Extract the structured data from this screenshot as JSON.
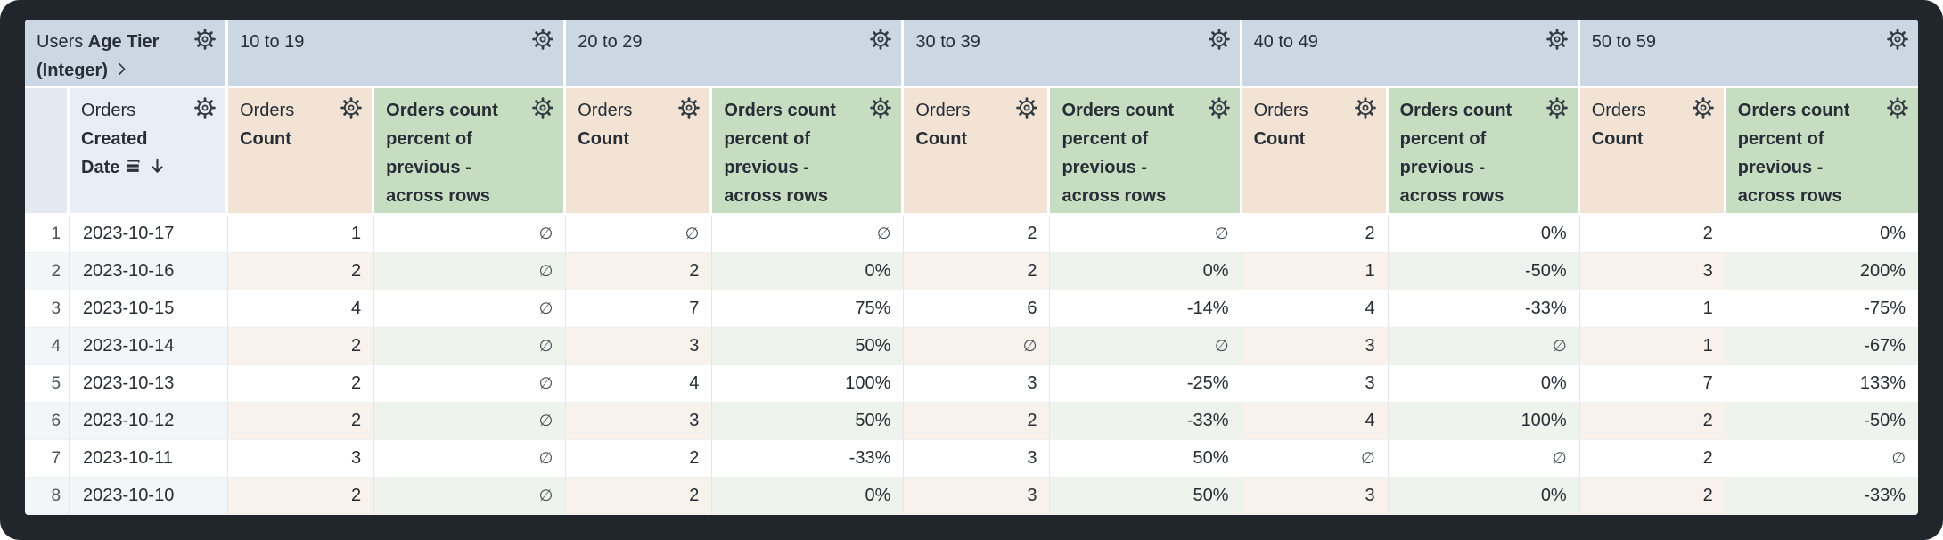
{
  "pivot_header": {
    "view": "Users",
    "field": "Age Tier (Integer)"
  },
  "row_header": {
    "view": "Orders",
    "field_line1": "Created",
    "field_line2": "Date"
  },
  "pivots": [
    "10 to 19",
    "20 to 29",
    "30 to 39",
    "40 to 49",
    "50 to 59"
  ],
  "measures": {
    "count": {
      "view": "Orders",
      "field": "Count"
    },
    "percent": {
      "label": "Orders count percent of previous - across rows"
    }
  },
  "null_symbol": "∅",
  "rows": [
    {
      "num": "1",
      "date": "2023-10-17",
      "values": [
        [
          "1",
          "∅"
        ],
        [
          "∅",
          "∅"
        ],
        [
          "2",
          "∅"
        ],
        [
          "2",
          "0%"
        ],
        [
          "2",
          "0%"
        ]
      ]
    },
    {
      "num": "2",
      "date": "2023-10-16",
      "values": [
        [
          "2",
          "∅"
        ],
        [
          "2",
          "0%"
        ],
        [
          "2",
          "0%"
        ],
        [
          "1",
          "-50%"
        ],
        [
          "3",
          "200%"
        ]
      ]
    },
    {
      "num": "3",
      "date": "2023-10-15",
      "values": [
        [
          "4",
          "∅"
        ],
        [
          "7",
          "75%"
        ],
        [
          "6",
          "-14%"
        ],
        [
          "4",
          "-33%"
        ],
        [
          "1",
          "-75%"
        ]
      ]
    },
    {
      "num": "4",
      "date": "2023-10-14",
      "values": [
        [
          "2",
          "∅"
        ],
        [
          "3",
          "50%"
        ],
        [
          "∅",
          "∅"
        ],
        [
          "3",
          "∅"
        ],
        [
          "1",
          "-67%"
        ]
      ]
    },
    {
      "num": "5",
      "date": "2023-10-13",
      "values": [
        [
          "2",
          "∅"
        ],
        [
          "4",
          "100%"
        ],
        [
          "3",
          "-25%"
        ],
        [
          "3",
          "0%"
        ],
        [
          "7",
          "133%"
        ]
      ]
    },
    {
      "num": "6",
      "date": "2023-10-12",
      "values": [
        [
          "2",
          "∅"
        ],
        [
          "3",
          "50%"
        ],
        [
          "2",
          "-33%"
        ],
        [
          "4",
          "100%"
        ],
        [
          "2",
          "-50%"
        ]
      ]
    },
    {
      "num": "7",
      "date": "2023-10-11",
      "values": [
        [
          "3",
          "∅"
        ],
        [
          "2",
          "-33%"
        ],
        [
          "3",
          "50%"
        ],
        [
          "∅",
          "∅"
        ],
        [
          "2",
          "∅"
        ]
      ]
    },
    {
      "num": "8",
      "date": "2023-10-10",
      "values": [
        [
          "2",
          "∅"
        ],
        [
          "2",
          "0%"
        ],
        [
          "3",
          "50%"
        ],
        [
          "3",
          "0%"
        ],
        [
          "2",
          "-33%"
        ]
      ]
    }
  ],
  "icons": {
    "gear": "gear-icon",
    "chevron": "chevron-right-icon",
    "sort_desc": "arrow-down-icon",
    "group_bars": "fill-bars-icon"
  },
  "colors": {
    "frame_bg": "#20262c",
    "pivot_header_bg": "#cbd7e3",
    "rownum_header_bg": "#e2e9f1",
    "dimension_header_bg": "#e8eef5",
    "count_header_bg": "#f2e3d5",
    "percent_header_bg": "#c7ddc2",
    "dimension_row_tint": "#f3f6f9",
    "count_row_tint": "#f9f1ec",
    "percent_row_tint": "#eef4ed"
  }
}
